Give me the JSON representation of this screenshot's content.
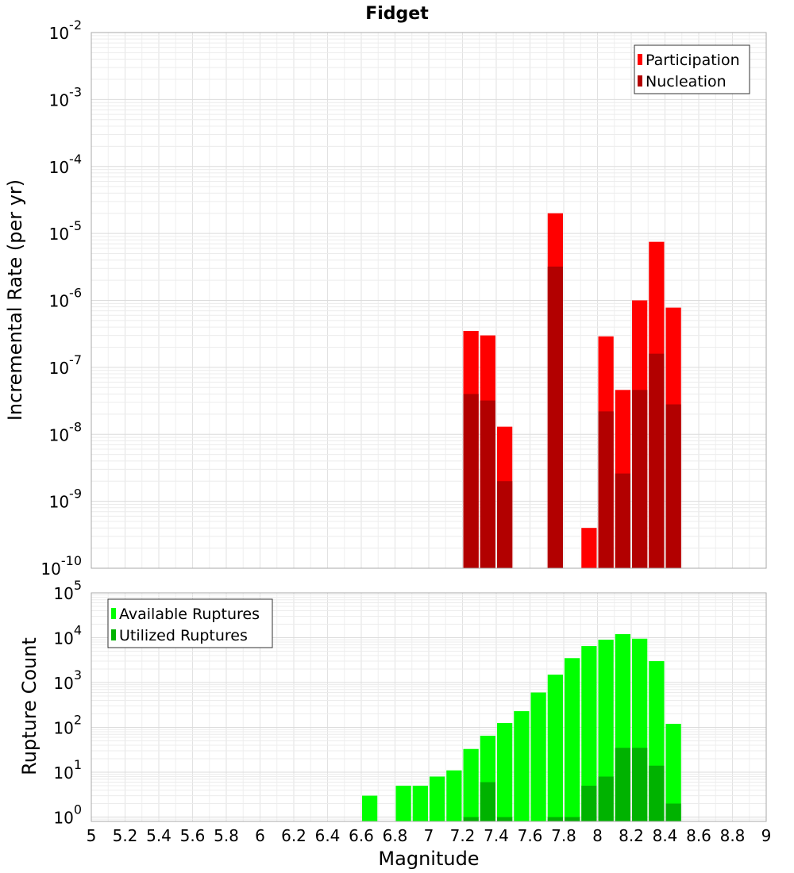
{
  "chart_data": [
    {
      "type": "bar",
      "title": "Fidget",
      "xlabel": "",
      "ylabel": "Incremental Rate (per yr)",
      "yscale": "log",
      "ylim": [
        1e-10,
        0.01
      ],
      "xlim": [
        5,
        9
      ],
      "grid": true,
      "legend": "top-right",
      "x": [
        7.25,
        7.35,
        7.45,
        7.75,
        7.95,
        8.05,
        8.15,
        8.25,
        8.35,
        8.45
      ],
      "series": [
        {
          "name": "Participation",
          "color": "#ff0000",
          "values": [
            3.5e-07,
            3e-07,
            1.3e-08,
            2e-05,
            4e-10,
            2.9e-07,
            4.6e-08,
            1e-06,
            7.5e-06,
            7.8e-07
          ]
        },
        {
          "name": "Nucleation",
          "color": "#b20000",
          "values": [
            4e-08,
            3.2e-08,
            2e-09,
            3.2e-06,
            0,
            2.2e-08,
            2.6e-09,
            4.6e-08,
            1.6e-07,
            2.8e-08
          ]
        }
      ],
      "y_ticks": [
        {
          "base": "10",
          "exp": "-2"
        },
        {
          "base": "10",
          "exp": "-3"
        },
        {
          "base": "10",
          "exp": "-4"
        },
        {
          "base": "10",
          "exp": "-5"
        },
        {
          "base": "10",
          "exp": "-6"
        },
        {
          "base": "10",
          "exp": "-7"
        },
        {
          "base": "10",
          "exp": "-8"
        },
        {
          "base": "10",
          "exp": "-9"
        },
        {
          "base": "10",
          "exp": "-10"
        }
      ]
    },
    {
      "type": "bar",
      "title": "",
      "xlabel": "Magnitude",
      "ylabel": "Rupture Count",
      "yscale": "log",
      "ylim": [
        0.8,
        100000.0
      ],
      "xlim": [
        5,
        9
      ],
      "grid": true,
      "legend": "top-left",
      "x": [
        6.65,
        6.85,
        6.95,
        7.05,
        7.15,
        7.25,
        7.35,
        7.45,
        7.55,
        7.65,
        7.75,
        7.85,
        7.95,
        8.05,
        8.15,
        8.25,
        8.35,
        8.45
      ],
      "series": [
        {
          "name": "Available Ruptures",
          "color": "#00ff00",
          "values": [
            3,
            5,
            5,
            8,
            11,
            33,
            65,
            125,
            230,
            600,
            1500,
            3500,
            6500,
            9000,
            12000,
            9500,
            3000,
            120
          ]
        },
        {
          "name": "Utilized Ruptures",
          "color": "#00b200",
          "values": [
            0,
            0,
            0,
            0,
            0,
            1,
            6,
            1,
            0,
            0,
            1,
            1,
            5,
            8,
            35,
            35,
            14,
            2
          ]
        }
      ],
      "y_ticks": [
        {
          "base": "10",
          "exp": "5"
        },
        {
          "base": "10",
          "exp": "4"
        },
        {
          "base": "10",
          "exp": "3"
        },
        {
          "base": "10",
          "exp": "2"
        },
        {
          "base": "10",
          "exp": "1"
        },
        {
          "base": "10",
          "exp": "0"
        }
      ],
      "x_tick_labels": [
        "5",
        "5.2",
        "5.4",
        "5.6",
        "5.8",
        "6",
        "6.2",
        "6.4",
        "6.6",
        "6.8",
        "7",
        "7.2",
        "7.4",
        "7.6",
        "7.8",
        "8",
        "8.2",
        "8.4",
        "8.6",
        "8.8",
        "9"
      ]
    }
  ]
}
